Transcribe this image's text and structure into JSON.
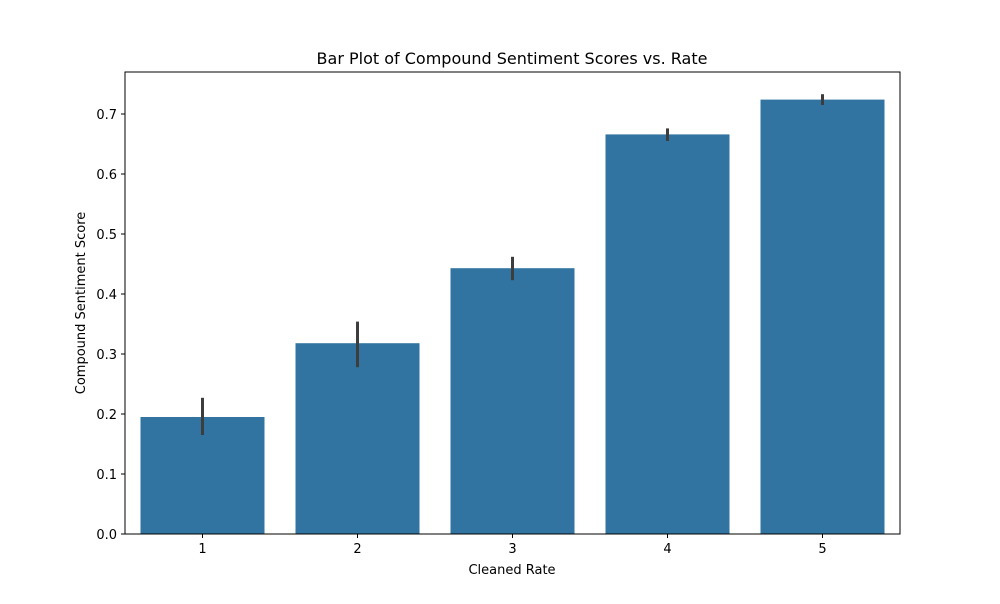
{
  "chart_data": {
    "type": "bar",
    "title": "Bar Plot of Compound Sentiment Scores vs. Rate",
    "xlabel": "Cleaned Rate",
    "ylabel": "Compound Sentiment Score",
    "categories": [
      "1",
      "2",
      "3",
      "4",
      "5"
    ],
    "values": [
      0.195,
      0.318,
      0.443,
      0.666,
      0.724
    ],
    "error_low": [
      0.165,
      0.278,
      0.423,
      0.655,
      0.715
    ],
    "error_high": [
      0.227,
      0.354,
      0.462,
      0.676,
      0.733
    ],
    "ylim": [
      0,
      0.77
    ],
    "yticks": [
      "0.0",
      "0.1",
      "0.2",
      "0.3",
      "0.4",
      "0.5",
      "0.6",
      "0.7"
    ],
    "ytick_values": [
      0,
      0.1,
      0.2,
      0.3,
      0.4,
      0.5,
      0.6,
      0.7
    ],
    "grid": false,
    "bar_color": "#3274a1",
    "error_color": "#3d3d3d"
  }
}
